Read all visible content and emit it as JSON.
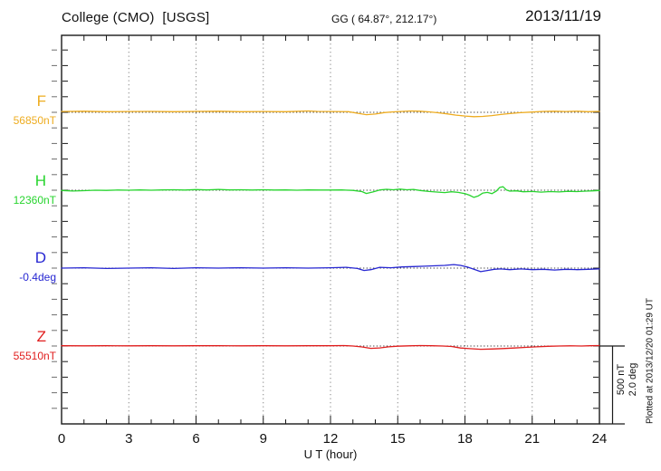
{
  "header": {
    "station_title": "College (CMO)  [USGS]",
    "coords": "GG ( 64.87°, 212.17°)",
    "date": "2013/11/19"
  },
  "x_axis": {
    "title": "U T (hour)",
    "tick_labels": [
      "0",
      "3",
      "6",
      "9",
      "12",
      "15",
      "18",
      "21",
      "24"
    ]
  },
  "channels": [
    {
      "letter": "F",
      "value_label": "56850nT",
      "color": "#eeac20"
    },
    {
      "letter": "H",
      "value_label": "12360nT",
      "color": "#27d42e"
    },
    {
      "letter": "D",
      "value_label": "-0.4deg",
      "color": "#2626d2"
    },
    {
      "letter": "Z",
      "value_label": "55510nT",
      "color": "#e01d1d"
    }
  ],
  "right_margin": {
    "scale_label_nt": "500 nT",
    "scale_label_deg": "2.0 deg",
    "plotted_at": "Plotted at 2013/12/20 01:29 UT"
  },
  "chart_data": {
    "type": "line",
    "title": "College (CMO) [USGS] magnetogram, 2013/11/19",
    "xlabel": "U T (hour)",
    "xlim": [
      0,
      24
    ],
    "xtick_interval": 3,
    "grid": "dotted vertical gridlines every 3 h; dotted horizontal baseline for each trace",
    "scale_per_division": {
      "nT": 500,
      "deg": 2.0
    },
    "legend_position": "left margin (colored channel labels)",
    "series": [
      {
        "name": "F",
        "unit": "nT",
        "baseline": 56850,
        "color": "#eeac20",
        "points": [
          [
            0,
            56855
          ],
          [
            1,
            56857
          ],
          [
            2,
            56854
          ],
          [
            3,
            56855
          ],
          [
            4,
            56856
          ],
          [
            5,
            56854
          ],
          [
            6,
            56856
          ],
          [
            7,
            56857
          ],
          [
            8,
            56854
          ],
          [
            9,
            56855
          ],
          [
            10,
            56854
          ],
          [
            11,
            56859
          ],
          [
            11.4,
            56856
          ],
          [
            12,
            56855
          ],
          [
            12.8,
            56854
          ],
          [
            13.2,
            56844
          ],
          [
            13.6,
            56835
          ],
          [
            14,
            56839
          ],
          [
            14.4,
            56848
          ],
          [
            14.8,
            56853
          ],
          [
            15.2,
            56856
          ],
          [
            15.6,
            56859
          ],
          [
            16,
            56857
          ],
          [
            16.4,
            56853
          ],
          [
            16.8,
            56847
          ],
          [
            17.2,
            56840
          ],
          [
            17.6,
            56832
          ],
          [
            18,
            56826
          ],
          [
            18.4,
            56822
          ],
          [
            18.8,
            56824
          ],
          [
            19.2,
            56829
          ],
          [
            19.6,
            56836
          ],
          [
            20,
            56842
          ],
          [
            20.4,
            56847
          ],
          [
            21,
            56852
          ],
          [
            21.5,
            56856
          ],
          [
            22,
            56857
          ],
          [
            22.5,
            56855
          ],
          [
            23,
            56857
          ],
          [
            23.5,
            56854
          ],
          [
            24,
            56856
          ]
        ]
      },
      {
        "name": "H",
        "unit": "nT",
        "baseline": 12360,
        "color": "#27d42e",
        "points": [
          [
            0,
            12358
          ],
          [
            0.5,
            12355
          ],
          [
            1,
            12357
          ],
          [
            1.5,
            12360
          ],
          [
            2,
            12359
          ],
          [
            2.5,
            12361
          ],
          [
            3,
            12360
          ],
          [
            3.5,
            12362
          ],
          [
            4,
            12360
          ],
          [
            4.5,
            12362
          ],
          [
            5,
            12363
          ],
          [
            5.5,
            12361
          ],
          [
            6,
            12364
          ],
          [
            6.5,
            12362
          ],
          [
            7,
            12365
          ],
          [
            7.5,
            12362
          ],
          [
            8,
            12363
          ],
          [
            8.5,
            12361
          ],
          [
            9,
            12363
          ],
          [
            9.5,
            12361
          ],
          [
            10,
            12362
          ],
          [
            10.5,
            12360
          ],
          [
            11,
            12362
          ],
          [
            11.5,
            12361
          ],
          [
            12,
            12361
          ],
          [
            12.5,
            12362
          ],
          [
            13,
            12359
          ],
          [
            13.4,
            12351
          ],
          [
            13.6,
            12339
          ],
          [
            13.9,
            12349
          ],
          [
            14.2,
            12362
          ],
          [
            14.5,
            12366
          ],
          [
            14.8,
            12363
          ],
          [
            15.1,
            12367
          ],
          [
            15.4,
            12363
          ],
          [
            15.7,
            12365
          ],
          [
            16,
            12358
          ],
          [
            16.4,
            12352
          ],
          [
            16.8,
            12348
          ],
          [
            17.1,
            12345
          ],
          [
            17.4,
            12350
          ],
          [
            17.7,
            12346
          ],
          [
            18,
            12338
          ],
          [
            18.2,
            12328
          ],
          [
            18.4,
            12314
          ],
          [
            18.6,
            12324
          ],
          [
            18.8,
            12342
          ],
          [
            19,
            12346
          ],
          [
            19.2,
            12338
          ],
          [
            19.4,
            12354
          ],
          [
            19.55,
            12378
          ],
          [
            19.7,
            12382
          ],
          [
            19.85,
            12362
          ],
          [
            20,
            12354
          ],
          [
            20.3,
            12356
          ],
          [
            20.6,
            12350
          ],
          [
            21,
            12352
          ],
          [
            21.4,
            12348
          ],
          [
            21.8,
            12351
          ],
          [
            22.2,
            12349
          ],
          [
            22.6,
            12353
          ],
          [
            23,
            12351
          ],
          [
            23.4,
            12354
          ],
          [
            23.7,
            12356
          ],
          [
            24,
            12358
          ]
        ]
      },
      {
        "name": "D",
        "unit": "deg",
        "baseline": -0.4,
        "color": "#2626d2",
        "points": [
          [
            0,
            -0.4
          ],
          [
            1,
            -0.39
          ],
          [
            2,
            -0.41
          ],
          [
            3,
            -0.4
          ],
          [
            4,
            -0.39
          ],
          [
            5,
            -0.41
          ],
          [
            6,
            -0.39
          ],
          [
            7,
            -0.4
          ],
          [
            8,
            -0.39
          ],
          [
            9,
            -0.4
          ],
          [
            10,
            -0.39
          ],
          [
            11,
            -0.4
          ],
          [
            12,
            -0.39
          ],
          [
            12.7,
            -0.38
          ],
          [
            13.2,
            -0.41
          ],
          [
            13.5,
            -0.46
          ],
          [
            13.8,
            -0.44
          ],
          [
            14.2,
            -0.38
          ],
          [
            14.7,
            -0.39
          ],
          [
            15.2,
            -0.37
          ],
          [
            15.7,
            -0.36
          ],
          [
            16.2,
            -0.35
          ],
          [
            16.7,
            -0.34
          ],
          [
            17.1,
            -0.33
          ],
          [
            17.5,
            -0.31
          ],
          [
            17.8,
            -0.33
          ],
          [
            18.1,
            -0.37
          ],
          [
            18.4,
            -0.43
          ],
          [
            18.7,
            -0.49
          ],
          [
            19,
            -0.46
          ],
          [
            19.3,
            -0.43
          ],
          [
            19.6,
            -0.42
          ],
          [
            20,
            -0.44
          ],
          [
            20.5,
            -0.42
          ],
          [
            21,
            -0.44
          ],
          [
            21.5,
            -0.43
          ],
          [
            22,
            -0.45
          ],
          [
            22.5,
            -0.43
          ],
          [
            23,
            -0.44
          ],
          [
            23.5,
            -0.43
          ],
          [
            24,
            -0.42
          ]
        ]
      },
      {
        "name": "Z",
        "unit": "nT",
        "baseline": 55510,
        "color": "#e01d1d",
        "points": [
          [
            0,
            55512
          ],
          [
            1,
            55511
          ],
          [
            2,
            55512
          ],
          [
            3,
            55511
          ],
          [
            4,
            55512
          ],
          [
            5,
            55511
          ],
          [
            6,
            55512
          ],
          [
            7,
            55512
          ],
          [
            8,
            55511
          ],
          [
            9,
            55512
          ],
          [
            10,
            55511
          ],
          [
            11,
            55512
          ],
          [
            12,
            55512
          ],
          [
            12.6,
            55513
          ],
          [
            13,
            55510
          ],
          [
            13.4,
            55504
          ],
          [
            13.8,
            55495
          ],
          [
            14.2,
            55498
          ],
          [
            14.6,
            55505
          ],
          [
            15,
            55509
          ],
          [
            15.5,
            55511
          ],
          [
            16,
            55513
          ],
          [
            16.5,
            55512
          ],
          [
            17,
            55510
          ],
          [
            17.4,
            55507
          ],
          [
            17.8,
            55497
          ],
          [
            18.2,
            55493
          ],
          [
            18.7,
            55489
          ],
          [
            19.2,
            55491
          ],
          [
            19.7,
            55494
          ],
          [
            20.2,
            55497
          ],
          [
            20.7,
            55501
          ],
          [
            21.2,
            55505
          ],
          [
            21.7,
            55508
          ],
          [
            22.2,
            55510
          ],
          [
            22.7,
            55511
          ],
          [
            23.2,
            55510
          ],
          [
            23.6,
            55512
          ],
          [
            24,
            55513
          ]
        ]
      }
    ]
  }
}
